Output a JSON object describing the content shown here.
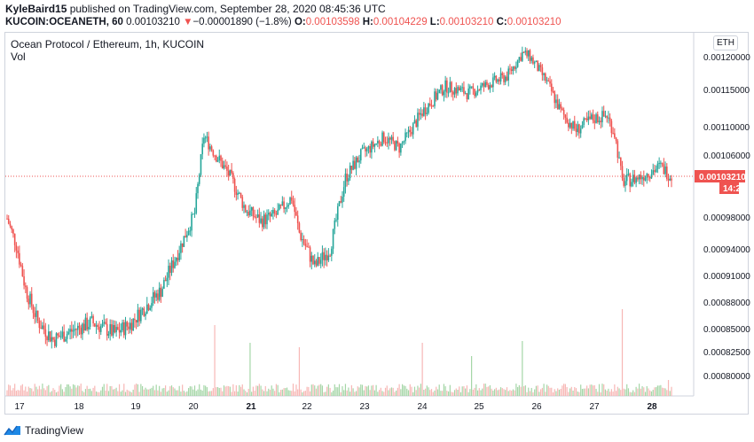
{
  "header": {
    "user": "KyleBaird15",
    "published": " published on TradingView.com, September 28, 2020 08:45:36 UTC",
    "symbol": "KUCOIN:OCEANETH, 60",
    "last": "0.00103210",
    "arrow": "▼",
    "change": "−0.00001890 (−1.8%)",
    "o_label": "O:",
    "o_value": "0.00103598",
    "h_label": "H:",
    "h_value": "0.00104229",
    "l_label": "L:",
    "l_value": "0.00103210",
    "c_label": "C:",
    "c_value": "0.00103210"
  },
  "pane": {
    "title": "Ocean Protocol / Ethereum, 1h, KUCOIN",
    "volume_label": "Vol",
    "currency_button": "ETH"
  },
  "footer": {
    "brand": "TradingView"
  },
  "colors": {
    "up": "#26a69a",
    "down": "#ef5350",
    "up_vol": "#a5d6a7",
    "down_vol": "#f7b7b5",
    "axis_text": "#131722",
    "price_label_bg": "#ef5350"
  },
  "chart_data": {
    "type": "candlestick",
    "title": "Ocean Protocol / Ethereum, 1h, KUCOIN",
    "y_ticks": [
      "0.00120000",
      "0.00115000",
      "0.00110000",
      "0.00106000",
      "0.00103210",
      "0.00098000",
      "0.00094000",
      "0.00091000",
      "0.00088000",
      "0.00085000",
      "0.00082500",
      "0.00080000"
    ],
    "x_ticks": [
      "17",
      "18",
      "19",
      "20",
      "21",
      "22",
      "23",
      "24",
      "25",
      "26",
      "27",
      "28"
    ],
    "last_price_label": "0.00103210",
    "countdown_label": "14:25",
    "price_path": [
      [
        0,
        0.000978
      ],
      [
        6,
        0.000945
      ],
      [
        12,
        0.000895
      ],
      [
        20,
        0.000858
      ],
      [
        30,
        0.000838
      ],
      [
        40,
        0.000846
      ],
      [
        55,
        0.000857
      ],
      [
        70,
        0.000845
      ],
      [
        80,
        0.000855
      ],
      [
        90,
        0.000875
      ],
      [
        100,
        0.000893
      ],
      [
        112,
        0.00094
      ],
      [
        122,
        0.000985
      ],
      [
        128,
        0.001087
      ],
      [
        135,
        0.001062
      ],
      [
        145,
        0.001032
      ],
      [
        155,
        0.00099
      ],
      [
        165,
        0.000975
      ],
      [
        175,
        0.000983
      ],
      [
        185,
        0.001005
      ],
      [
        190,
        0.00096
      ],
      [
        200,
        0.00092
      ],
      [
        210,
        0.00094
      ],
      [
        220,
        0.00103
      ],
      [
        230,
        0.00106
      ],
      [
        245,
        0.001085
      ],
      [
        255,
        0.00107
      ],
      [
        270,
        0.00112
      ],
      [
        285,
        0.001155
      ],
      [
        300,
        0.001145
      ],
      [
        315,
        0.00116
      ],
      [
        325,
        0.00117
      ],
      [
        335,
        0.001205
      ],
      [
        340,
        0.0012
      ],
      [
        350,
        0.001165
      ],
      [
        360,
        0.00112
      ],
      [
        370,
        0.001095
      ],
      [
        380,
        0.00111
      ],
      [
        390,
        0.001115
      ],
      [
        395,
        0.00109
      ],
      [
        400,
        0.001025
      ],
      [
        410,
        0.00103
      ],
      [
        425,
        0.001045
      ],
      [
        432,
        0.001032
      ]
    ],
    "volume_spikes": [
      [
        135,
        0.8
      ],
      [
        158,
        0.6
      ],
      [
        190,
        0.55
      ],
      [
        270,
        0.6
      ],
      [
        302,
        0.45
      ],
      [
        335,
        0.62
      ],
      [
        400,
        0.98
      ],
      [
        430,
        0.18
      ]
    ]
  }
}
